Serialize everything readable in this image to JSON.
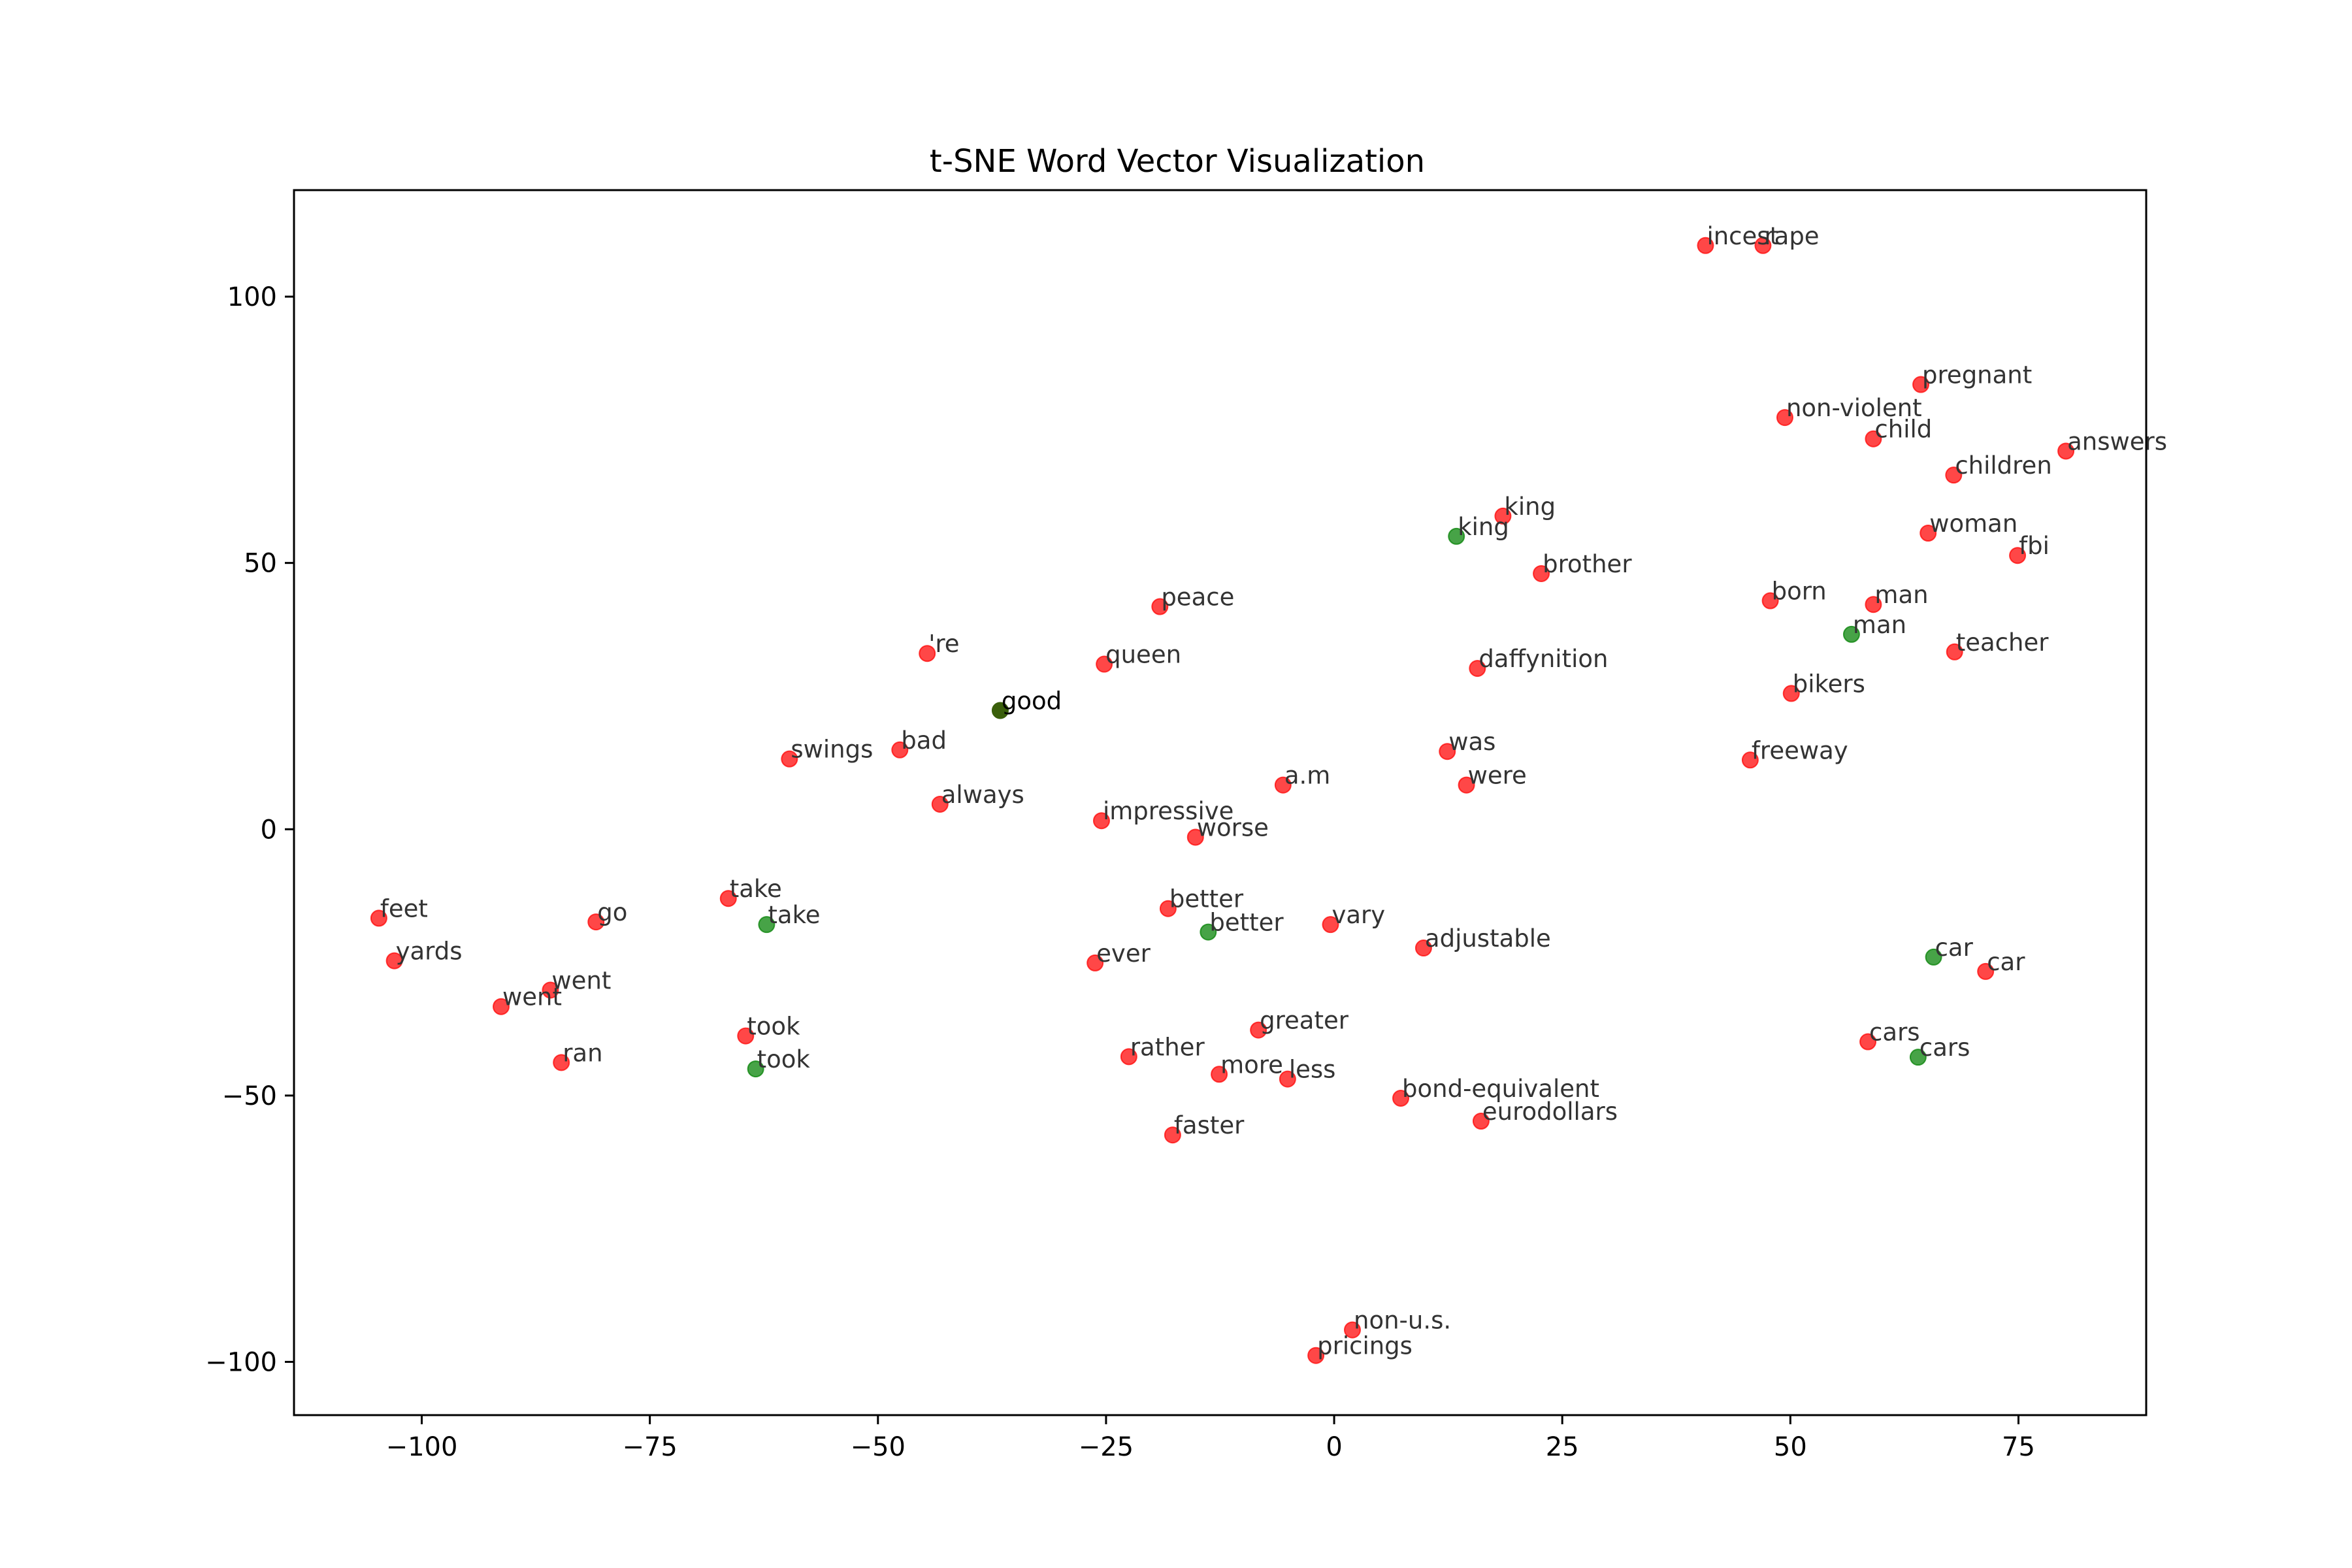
{
  "chart_data": {
    "type": "scatter",
    "title": "t-SNE Word Vector Visualization",
    "xlabel": "",
    "ylabel": "",
    "xlim": [
      -114,
      89
    ],
    "ylim": [
      -110,
      120
    ],
    "x_ticks": [
      -100,
      -75,
      -50,
      -25,
      0,
      25,
      50,
      75
    ],
    "y_ticks": [
      100,
      50,
      0,
      -50,
      -100
    ],
    "x_tick_labels": [
      "−100",
      "−75",
      "−50",
      "−25",
      "0",
      "25",
      "50",
      "75"
    ],
    "y_tick_labels": [
      "100",
      "50",
      "0",
      "−50",
      "−100"
    ],
    "grid": false,
    "colors": {
      "red": "#ff0000",
      "green": "#008000",
      "overlap": "#3a5f0b"
    },
    "series": [
      {
        "color": "red",
        "points": [
          {
            "label": "incest",
            "x": 40.7,
            "y": 109.6
          },
          {
            "label": "rape",
            "x": 47.0,
            "y": 109.6
          },
          {
            "label": "pregnant",
            "x": 64.3,
            "y": 83.5
          },
          {
            "label": "non-violent",
            "x": 49.4,
            "y": 77.3
          },
          {
            "label": "child",
            "x": 59.1,
            "y": 73.3
          },
          {
            "label": "answers",
            "x": 80.2,
            "y": 71.0
          },
          {
            "label": "children",
            "x": 67.9,
            "y": 66.5
          },
          {
            "label": "king",
            "x": 18.5,
            "y": 58.8
          },
          {
            "label": "woman",
            "x": 65.1,
            "y": 55.6
          },
          {
            "label": "fbi",
            "x": 74.9,
            "y": 51.4
          },
          {
            "label": "brother",
            "x": 22.7,
            "y": 48.0
          },
          {
            "label": "born",
            "x": 47.8,
            "y": 42.9
          },
          {
            "label": "man",
            "x": 59.1,
            "y": 42.2
          },
          {
            "label": "peace",
            "x": -19.1,
            "y": 41.8
          },
          {
            "label": "teacher",
            "x": 68.0,
            "y": 33.3
          },
          {
            "label": "'re",
            "x": -44.6,
            "y": 33.0
          },
          {
            "label": "queen",
            "x": -25.2,
            "y": 31.0
          },
          {
            "label": "daffynition",
            "x": 15.7,
            "y": 30.2
          },
          {
            "label": "bikers",
            "x": 50.1,
            "y": 25.5
          },
          {
            "label": "swings",
            "x": -59.7,
            "y": 13.2
          },
          {
            "label": "bad",
            "x": -47.6,
            "y": 14.9
          },
          {
            "label": "was",
            "x": 12.4,
            "y": 14.6
          },
          {
            "label": "freeway",
            "x": 45.6,
            "y": 13.0
          },
          {
            "label": "always",
            "x": -43.2,
            "y": 4.7
          },
          {
            "label": "a.m",
            "x": -5.6,
            "y": 8.3
          },
          {
            "label": "were",
            "x": 14.5,
            "y": 8.3
          },
          {
            "label": "impressive",
            "x": -25.5,
            "y": 1.6
          },
          {
            "label": "worse",
            "x": -15.2,
            "y": -1.5
          },
          {
            "label": "feet",
            "x": -104.7,
            "y": -16.7
          },
          {
            "label": "take",
            "x": -66.4,
            "y": -13.0
          },
          {
            "label": "go",
            "x": -80.9,
            "y": -17.4
          },
          {
            "label": "better",
            "x": -18.2,
            "y": -14.9
          },
          {
            "label": "vary",
            "x": -0.4,
            "y": -17.9
          },
          {
            "label": "adjustable",
            "x": 9.8,
            "y": -22.3
          },
          {
            "label": "yards",
            "x": -103.0,
            "y": -24.7
          },
          {
            "label": "ever",
            "x": -26.2,
            "y": -25.1
          },
          {
            "label": "car",
            "x": 71.4,
            "y": -26.7
          },
          {
            "label": "went",
            "x": -85.9,
            "y": -30.2
          },
          {
            "label": "went",
            "x": -91.3,
            "y": -33.3
          },
          {
            "label": "greater",
            "x": -8.3,
            "y": -37.7
          },
          {
            "label": "took",
            "x": -64.5,
            "y": -38.8
          },
          {
            "label": "cars",
            "x": 58.5,
            "y": -39.9
          },
          {
            "label": "ran",
            "x": -84.7,
            "y": -43.8
          },
          {
            "label": "rather",
            "x": -22.5,
            "y": -42.7
          },
          {
            "label": "more",
            "x": -12.6,
            "y": -46.0
          },
          {
            "label": "less",
            "x": -5.1,
            "y": -46.9
          },
          {
            "label": "bond-equivalent",
            "x": 7.3,
            "y": -50.5
          },
          {
            "label": "eurodollars",
            "x": 16.1,
            "y": -54.8
          },
          {
            "label": "faster",
            "x": -17.7,
            "y": -57.4
          },
          {
            "label": "non-u.s.",
            "x": 2.0,
            "y": -94.0
          },
          {
            "label": "pricings",
            "x": -2.0,
            "y": -98.8
          }
        ]
      },
      {
        "color": "green",
        "points": [
          {
            "label": "king",
            "x": 13.4,
            "y": 55.0
          },
          {
            "label": "man",
            "x": 56.7,
            "y": 36.6
          },
          {
            "label": "take",
            "x": -62.2,
            "y": -17.9
          },
          {
            "label": "better",
            "x": -13.8,
            "y": -19.3
          },
          {
            "label": "car",
            "x": 65.7,
            "y": -24.0
          },
          {
            "label": "took",
            "x": -63.4,
            "y": -45.0
          },
          {
            "label": "cars",
            "x": 64.0,
            "y": -42.8
          }
        ]
      },
      {
        "color": "overlap",
        "points": [
          {
            "label": "good",
            "x": -36.6,
            "y": 22.3
          }
        ]
      }
    ]
  }
}
